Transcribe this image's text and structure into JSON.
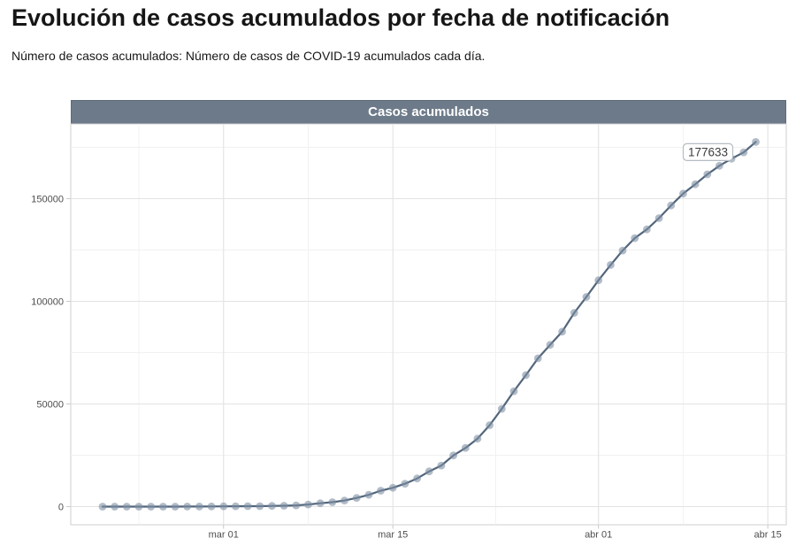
{
  "page": {
    "title": "Evolución de casos acumulados por fecha de notificación",
    "subtitle": "Número de casos acumulados: Número de casos de COVID-19 acumulados cada día."
  },
  "chart_data": {
    "type": "line",
    "title": "Casos acumulados",
    "xlabel": "",
    "ylabel": "",
    "grid": true,
    "legend": "none",
    "ylim": [
      -8600,
      186600
    ],
    "x": [
      "2020-02-20",
      "2020-02-21",
      "2020-02-22",
      "2020-02-23",
      "2020-02-24",
      "2020-02-25",
      "2020-02-26",
      "2020-02-27",
      "2020-02-28",
      "2020-02-29",
      "2020-03-01",
      "2020-03-02",
      "2020-03-03",
      "2020-03-04",
      "2020-03-05",
      "2020-03-06",
      "2020-03-07",
      "2020-03-08",
      "2020-03-09",
      "2020-03-10",
      "2020-03-11",
      "2020-03-12",
      "2020-03-13",
      "2020-03-14",
      "2020-03-15",
      "2020-03-16",
      "2020-03-17",
      "2020-03-18",
      "2020-03-19",
      "2020-03-20",
      "2020-03-21",
      "2020-03-22",
      "2020-03-23",
      "2020-03-24",
      "2020-03-25",
      "2020-03-26",
      "2020-03-27",
      "2020-03-28",
      "2020-03-29",
      "2020-03-30",
      "2020-03-31",
      "2020-04-01",
      "2020-04-02",
      "2020-04-03",
      "2020-04-04",
      "2020-04-05",
      "2020-04-06",
      "2020-04-07",
      "2020-04-08",
      "2020-04-09",
      "2020-04-10",
      "2020-04-11",
      "2020-04-12",
      "2020-04-13",
      "2020-04-14"
    ],
    "series": [
      {
        "name": "Casos acumulados",
        "values": [
          3,
          3,
          3,
          3,
          6,
          13,
          15,
          32,
          45,
          66,
          114,
          151,
          198,
          237,
          365,
          430,
          589,
          1024,
          1639,
          2140,
          2965,
          4231,
          5753,
          7753,
          9191,
          11178,
          13716,
          17147,
          19980,
          24926,
          28572,
          33089,
          39673,
          47610,
          56188,
          64059,
          72248,
          78797,
          85195,
          94417,
          102136,
          110238,
          117710,
          124736,
          130759,
          135032,
          140510,
          146690,
          152446,
          157022,
          161852,
          166019,
          169496,
          172541,
          177633
        ]
      }
    ],
    "annotation": {
      "text": "177633",
      "x": "2020-04-14",
      "y": 177633
    },
    "x_axis": {
      "tick_labels": [
        "mar 01",
        "mar 15",
        "abr 01",
        "abr 15"
      ],
      "tick_day_offsets": [
        10,
        24,
        41,
        55
      ],
      "minor_day_offsets": [
        3,
        17,
        32.5,
        48
      ]
    },
    "y_axis": {
      "tick_labels": [
        "0",
        "50000",
        "100000",
        "150000"
      ],
      "tick_values": [
        0,
        50000,
        100000,
        150000
      ],
      "minor_values": [
        25000,
        75000,
        125000,
        175000
      ]
    },
    "colors": {
      "strip_bg": "#6d7a89",
      "strip_text": "#ffffff",
      "line": "#52657b",
      "point": "#7f8fa3",
      "grid_major": "#e3e3e3",
      "grid_minor": "#f1f1f1",
      "panel_border": "#cfcfcf",
      "tick_mark": "#c9c9c9",
      "axis_text": "#4d4d4d",
      "annotation_border": "#b4bcc4",
      "annotation_text": "#3c3c3c"
    }
  }
}
